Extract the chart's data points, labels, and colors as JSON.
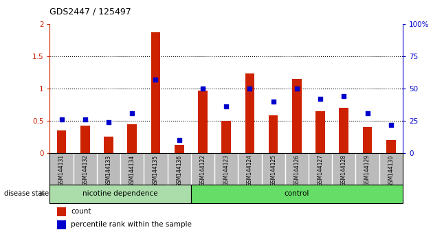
{
  "title": "GDS2447 / 125497",
  "categories": [
    "GSM144131",
    "GSM144132",
    "GSM144133",
    "GSM144134",
    "GSM144135",
    "GSM144136",
    "GSM144122",
    "GSM144123",
    "GSM144124",
    "GSM144125",
    "GSM144126",
    "GSM144127",
    "GSM144128",
    "GSM144129",
    "GSM144130"
  ],
  "count_values": [
    0.35,
    0.43,
    0.26,
    0.45,
    1.88,
    0.13,
    0.97,
    0.5,
    1.24,
    0.59,
    1.15,
    0.65,
    0.7,
    0.4,
    0.2
  ],
  "percentile_values": [
    26,
    26,
    24,
    31,
    57,
    10,
    50,
    36,
    50,
    40,
    50,
    42,
    44,
    31,
    22
  ],
  "bar_color": "#cc2200",
  "dot_color": "#0000cc",
  "ylim_left": [
    0,
    2
  ],
  "ylim_right": [
    0,
    100
  ],
  "yticks_left": [
    0,
    0.5,
    1.0,
    1.5,
    2.0
  ],
  "ytick_labels_left": [
    "0",
    "0.5",
    "1",
    "1.5",
    "2"
  ],
  "yticks_right": [
    0,
    25,
    50,
    75,
    100
  ],
  "ytick_labels_right": [
    "0",
    "25",
    "50",
    "75",
    "100%"
  ],
  "group1_label": "nicotine dependence",
  "group2_label": "control",
  "group1_count": 6,
  "group2_count": 9,
  "disease_state_label": "disease state",
  "legend_count_label": "count",
  "legend_percentile_label": "percentile rank within the sample",
  "group1_color": "#aaddaa",
  "group2_color": "#66dd66",
  "bg_color": "#ffffff",
  "plot_bg": "#ffffff",
  "tick_bg": "#bbbbbb",
  "bar_width": 0.4
}
